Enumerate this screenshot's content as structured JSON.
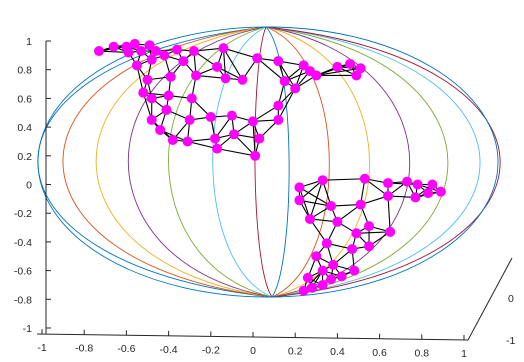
{
  "chart_data": {
    "type": "scatter",
    "title": "",
    "xlabel": "",
    "ylabel": "",
    "xlim": [
      -1,
      1
    ],
    "ylim": [
      -1,
      1
    ],
    "zlim": [
      -1,
      1
    ],
    "grid": false,
    "legend": "none",
    "x_ticks": [
      "-1",
      "-0.8",
      "-0.6",
      "-0.4",
      "-0.2",
      "0",
      "0.2",
      "0.4",
      "0.6",
      "0.8",
      "1"
    ],
    "y_ticks": [
      "-1",
      "-0.8",
      "-0.6",
      "-0.4",
      "-0.2",
      "0",
      "0.2",
      "0.4",
      "0.6",
      "0.8",
      "1"
    ],
    "z_ticks": [
      "-1",
      "0"
    ],
    "meridian_colors": [
      "#0072bd",
      "#d95319",
      "#edb120",
      "#7e2f8e",
      "#77ac30",
      "#4dbeee",
      "#a2142f"
    ],
    "marker_color": "#ff00ff",
    "edge_color": "#000000",
    "points": [
      [
        -0.73,
        0.93
      ],
      [
        -0.66,
        0.96
      ],
      [
        -0.6,
        0.96
      ],
      [
        -0.56,
        0.98
      ],
      [
        -0.49,
        0.97
      ],
      [
        -0.53,
        0.93
      ],
      [
        -0.59,
        0.92
      ],
      [
        -0.46,
        0.93
      ],
      [
        -0.42,
        0.9
      ],
      [
        -0.36,
        0.94
      ],
      [
        -0.28,
        0.93
      ],
      [
        -0.14,
        0.95
      ],
      [
        -0.17,
        0.82
      ],
      [
        -0.33,
        0.86
      ],
      [
        -0.48,
        0.87
      ],
      [
        -0.55,
        0.83
      ],
      [
        -0.5,
        0.73
      ],
      [
        -0.39,
        0.75
      ],
      [
        -0.27,
        0.76
      ],
      [
        -0.13,
        0.74
      ],
      [
        -0.05,
        0.73
      ],
      [
        0.02,
        0.88
      ],
      [
        0.12,
        0.86
      ],
      [
        0.24,
        0.83
      ],
      [
        0.27,
        0.79
      ],
      [
        0.3,
        0.76
      ],
      [
        0.4,
        0.82
      ],
      [
        0.46,
        0.84
      ],
      [
        0.51,
        0.81
      ],
      [
        0.49,
        0.76
      ],
      [
        0.15,
        0.72
      ],
      [
        0.2,
        0.67
      ],
      [
        -0.52,
        0.64
      ],
      [
        -0.48,
        0.6
      ],
      [
        -0.4,
        0.62
      ],
      [
        -0.29,
        0.6
      ],
      [
        -0.41,
        0.52
      ],
      [
        -0.48,
        0.45
      ],
      [
        -0.44,
        0.38
      ],
      [
        -0.38,
        0.31
      ],
      [
        -0.3,
        0.45
      ],
      [
        -0.2,
        0.47
      ],
      [
        -0.1,
        0.48
      ],
      [
        0.0,
        0.44
      ],
      [
        0.12,
        0.45
      ],
      [
        0.12,
        0.55
      ],
      [
        -0.31,
        0.3
      ],
      [
        -0.18,
        0.32
      ],
      [
        -0.09,
        0.35
      ],
      [
        0.03,
        0.32
      ],
      [
        -0.17,
        0.25
      ],
      [
        0.01,
        0.2
      ],
      [
        0.22,
        -0.02
      ],
      [
        0.33,
        0.03
      ],
      [
        0.53,
        0.04
      ],
      [
        0.64,
        0.01
      ],
      [
        0.73,
        0.02
      ],
      [
        0.78,
        0.0
      ],
      [
        0.85,
        0.0
      ],
      [
        0.89,
        -0.05
      ],
      [
        0.83,
        -0.06
      ],
      [
        0.77,
        -0.09
      ],
      [
        0.22,
        -0.11
      ],
      [
        0.37,
        -0.15
      ],
      [
        0.51,
        -0.14
      ],
      [
        0.64,
        -0.08
      ],
      [
        0.27,
        -0.24
      ],
      [
        0.4,
        -0.26
      ],
      [
        0.49,
        -0.34
      ],
      [
        0.55,
        -0.29
      ],
      [
        0.65,
        -0.33
      ],
      [
        0.35,
        -0.41
      ],
      [
        0.47,
        -0.45
      ],
      [
        0.3,
        -0.5
      ],
      [
        0.55,
        -0.43
      ],
      [
        0.38,
        -0.56
      ],
      [
        0.33,
        -0.6
      ],
      [
        0.26,
        -0.65
      ],
      [
        0.42,
        -0.64
      ],
      [
        0.48,
        -0.6
      ],
      [
        0.28,
        -0.72
      ],
      [
        0.33,
        -0.7
      ],
      [
        0.37,
        -0.66
      ],
      [
        0.24,
        -0.74
      ]
    ]
  }
}
